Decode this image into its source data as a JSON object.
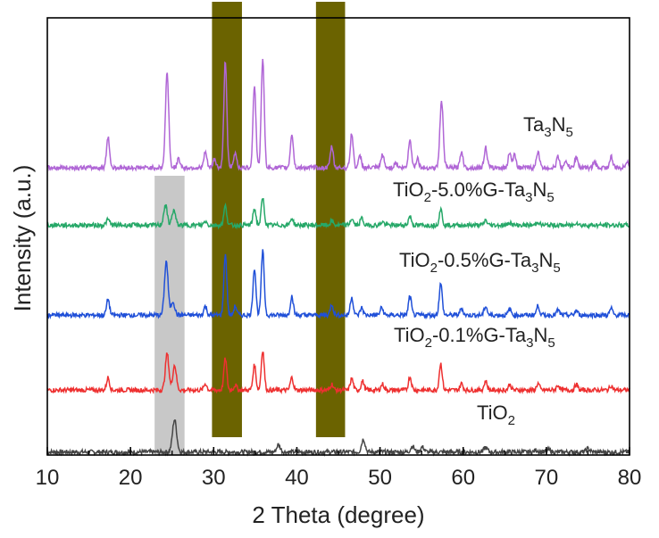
{
  "chart_data": {
    "type": "line",
    "title": "",
    "xlabel": "2 Theta (degree)",
    "ylabel": "Intensity (a.u.)",
    "xlim": [
      10,
      80
    ],
    "x_ticks": [
      10,
      20,
      30,
      40,
      50,
      60,
      70,
      80
    ],
    "y_ticks": "none",
    "grid": false,
    "legend": "curve labels placed beside each trace",
    "highlight_bands": [
      {
        "x_range": [
          22.9,
          26.5
        ],
        "color": "#c8c8c8",
        "meaning": "light grey band"
      },
      {
        "x_range": [
          29.8,
          33.4
        ],
        "color": "#6b6300",
        "meaning": "olive band"
      },
      {
        "x_range": [
          42.3,
          45.8
        ],
        "color": "#6b6300",
        "meaning": "olive band"
      }
    ],
    "series": [
      {
        "name": "TiO2",
        "label_main": "TiO",
        "label_sub": "2",
        "color": "#454545",
        "baseline": 0.6,
        "peaks": [
          [
            25.3,
            6.5,
            0.35
          ],
          [
            37.8,
            1.5,
            0.3
          ],
          [
            48.0,
            2.6,
            0.3
          ],
          [
            53.9,
            1.2,
            0.3
          ],
          [
            55.1,
            1.0,
            0.3
          ],
          [
            62.7,
            0.9,
            0.3
          ],
          [
            68.8,
            0.4,
            0.3
          ],
          [
            70.3,
            0.4,
            0.3
          ],
          [
            75.0,
            0.7,
            0.3
          ]
        ]
      },
      {
        "name": "TiO2-0.1%G-Ta3N5",
        "label_main": "TiO",
        "label_sub": "2",
        "label_tail": "-0.1%G-Ta",
        "label_sub2": "3",
        "label_end": "N",
        "label_sub3": "5",
        "color": "#ee3030",
        "baseline": 13.0,
        "peaks": [
          [
            17.3,
            2.5,
            0.25
          ],
          [
            24.4,
            7.3,
            0.3
          ],
          [
            25.3,
            5.0,
            0.3
          ],
          [
            29.0,
            1.3,
            0.25
          ],
          [
            31.4,
            6.3,
            0.25
          ],
          [
            32.6,
            1.0,
            0.25
          ],
          [
            34.9,
            5.0,
            0.25
          ],
          [
            35.9,
            8.0,
            0.25
          ],
          [
            39.4,
            2.5,
            0.25
          ],
          [
            44.2,
            1.2,
            0.25
          ],
          [
            46.6,
            2.3,
            0.25
          ],
          [
            47.9,
            1.8,
            0.25
          ],
          [
            50.3,
            1.2,
            0.25
          ],
          [
            53.6,
            2.7,
            0.25
          ],
          [
            57.3,
            5.3,
            0.25
          ],
          [
            59.8,
            1.3,
            0.25
          ],
          [
            62.7,
            1.8,
            0.25
          ],
          [
            65.6,
            1.1,
            0.25
          ],
          [
            69.0,
            1.3,
            0.25
          ],
          [
            71.4,
            1.0,
            0.25
          ],
          [
            73.6,
            1.1,
            0.25
          ],
          [
            77.8,
            0.9,
            0.25
          ]
        ]
      },
      {
        "name": "TiO2-0.5%G-Ta3N5",
        "label_main": "TiO",
        "label_sub": "2",
        "label_tail": "-0.5%G-Ta",
        "label_sub2": "3",
        "label_end": "N",
        "label_sub3": "5",
        "color": "#2050d8",
        "baseline": 28.0,
        "peaks": [
          [
            17.3,
            3.2,
            0.25
          ],
          [
            24.3,
            10.8,
            0.3
          ],
          [
            25.1,
            2.8,
            0.3
          ],
          [
            29.0,
            1.8,
            0.25
          ],
          [
            31.4,
            12.2,
            0.25
          ],
          [
            32.6,
            1.8,
            0.25
          ],
          [
            34.9,
            9.5,
            0.25
          ],
          [
            35.9,
            12.8,
            0.25
          ],
          [
            39.4,
            3.8,
            0.25
          ],
          [
            44.2,
            2.2,
            0.25
          ],
          [
            46.6,
            3.6,
            0.25
          ],
          [
            47.8,
            1.5,
            0.25
          ],
          [
            50.2,
            1.5,
            0.25
          ],
          [
            53.6,
            3.8,
            0.25
          ],
          [
            57.3,
            6.3,
            0.25
          ],
          [
            59.8,
            1.4,
            0.25
          ],
          [
            62.7,
            1.8,
            0.25
          ],
          [
            65.6,
            1.2,
            0.25
          ],
          [
            69.0,
            1.9,
            0.25
          ],
          [
            71.4,
            1.0,
            0.25
          ],
          [
            73.6,
            0.9,
            0.25
          ],
          [
            77.8,
            1.3,
            0.25
          ]
        ]
      },
      {
        "name": "TiO2-5.0%G-Ta3N5",
        "label_main": "TiO",
        "label_sub": "2",
        "label_tail": "-5.0%G-Ta",
        "label_sub2": "3",
        "label_end": "N",
        "label_sub3": "5",
        "color": "#26a868",
        "baseline": 46.0,
        "peaks": [
          [
            17.3,
            1.1,
            0.3
          ],
          [
            24.2,
            4.0,
            0.3
          ],
          [
            25.2,
            3.0,
            0.3
          ],
          [
            29.0,
            0.8,
            0.25
          ],
          [
            31.4,
            3.8,
            0.25
          ],
          [
            34.9,
            3.3,
            0.25
          ],
          [
            35.9,
            5.4,
            0.25
          ],
          [
            39.4,
            1.4,
            0.25
          ],
          [
            44.2,
            0.8,
            0.25
          ],
          [
            46.6,
            1.3,
            0.25
          ],
          [
            47.8,
            1.4,
            0.25
          ],
          [
            50.3,
            0.7,
            0.25
          ],
          [
            53.6,
            1.8,
            0.25
          ],
          [
            57.3,
            3.2,
            0.25
          ],
          [
            62.7,
            1.0,
            0.25
          ],
          [
            65.6,
            0.6,
            0.25
          ],
          [
            69.0,
            0.7,
            0.25
          ],
          [
            73.6,
            0.6,
            0.25
          ]
        ]
      },
      {
        "name": "Ta3N5",
        "label_main": "Ta",
        "label_sub": "3",
        "label_tail": "N",
        "label_sub2": "5",
        "color": "#b066d6",
        "baseline": 57.5,
        "peaks": [
          [
            17.3,
            6.3,
            0.25
          ],
          [
            24.4,
            19.0,
            0.28
          ],
          [
            25.8,
            1.8,
            0.25
          ],
          [
            29.0,
            3.1,
            0.25
          ],
          [
            30.1,
            1.8,
            0.25
          ],
          [
            31.4,
            21.5,
            0.25
          ],
          [
            32.6,
            3.0,
            0.25
          ],
          [
            34.9,
            16.5,
            0.25
          ],
          [
            35.9,
            22.0,
            0.25
          ],
          [
            39.4,
            6.8,
            0.25
          ],
          [
            44.2,
            4.3,
            0.25
          ],
          [
            46.6,
            6.8,
            0.25
          ],
          [
            47.6,
            2.3,
            0.25
          ],
          [
            50.3,
            2.6,
            0.25
          ],
          [
            51.9,
            1.1,
            0.25
          ],
          [
            53.6,
            5.8,
            0.25
          ],
          [
            54.5,
            1.9,
            0.25
          ],
          [
            57.4,
            13.3,
            0.28
          ],
          [
            59.8,
            3.3,
            0.25
          ],
          [
            62.7,
            4.1,
            0.25
          ],
          [
            65.6,
            3.2,
            0.25
          ],
          [
            66.2,
            2.6,
            0.25
          ],
          [
            69.0,
            3.4,
            0.25
          ],
          [
            71.4,
            2.2,
            0.25
          ],
          [
            72.4,
            1.3,
            0.25
          ],
          [
            73.6,
            2.2,
            0.25
          ],
          [
            75.8,
            1.1,
            0.25
          ],
          [
            77.8,
            2.2,
            0.25
          ],
          [
            79.7,
            1.4,
            0.25
          ]
        ]
      }
    ]
  }
}
